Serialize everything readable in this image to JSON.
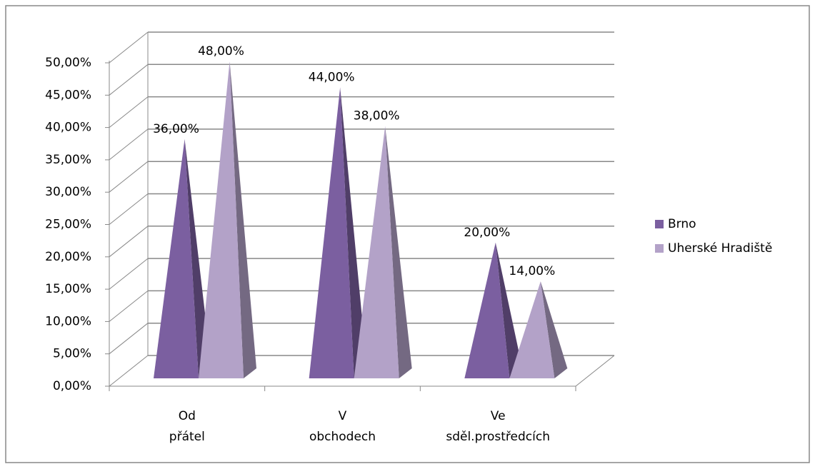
{
  "chart_data": {
    "type": "pyramid",
    "categories": [
      "Od přátel",
      "V obchodech",
      "Ve sděl.prostředcích"
    ],
    "series": [
      {
        "name": "Brno",
        "color": "#7b5fa0",
        "values": [
          36,
          44,
          20
        ],
        "value_labels": [
          "36,00%",
          "44,00%",
          "20,00%"
        ]
      },
      {
        "name": "Uherské Hradiště",
        "color": "#b3a2c8",
        "values": [
          48,
          38,
          14
        ],
        "value_labels": [
          "48,00%",
          "38,00%",
          "14,00%"
        ]
      }
    ],
    "ylim": [
      0,
      50
    ],
    "yticks": [
      {
        "value": 0,
        "label": "0,00%"
      },
      {
        "value": 5,
        "label": "5,00%"
      },
      {
        "value": 10,
        "label": "10,00%"
      },
      {
        "value": 15,
        "label": "15,00%"
      },
      {
        "value": 20,
        "label": "20,00%"
      },
      {
        "value": 25,
        "label": "25,00%"
      },
      {
        "value": 30,
        "label": "30,00%"
      },
      {
        "value": 35,
        "label": "35,00%"
      },
      {
        "value": 40,
        "label": "40,00%"
      },
      {
        "value": 45,
        "label": "45,00%"
      },
      {
        "value": 50,
        "label": "50,00%"
      }
    ],
    "grid": true,
    "legend": "right"
  }
}
